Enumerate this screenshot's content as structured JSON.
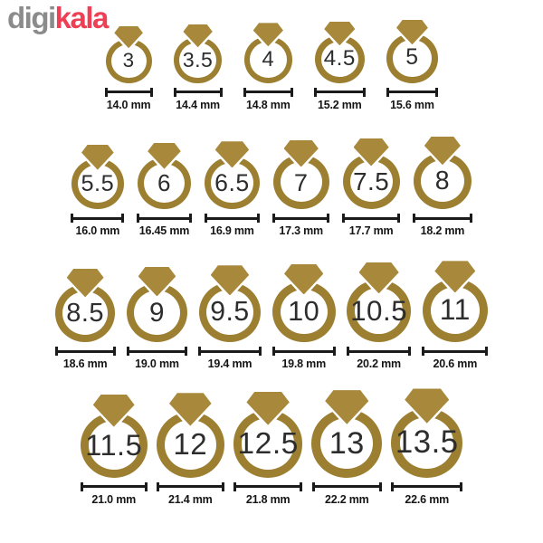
{
  "logo": {
    "gray_text": "digi",
    "red_text": "kala"
  },
  "colors": {
    "background": "#ffffff",
    "band": "#9c7f31",
    "gem": "#a8893c",
    "logo_gray": "#8b8b8b",
    "logo_red": "#ee3f55",
    "ruler": "#1b1b1b",
    "number": "#2d2d2d",
    "label": "#151515"
  },
  "chart_data": {
    "type": "table",
    "description": "Ring size chart: ring size number with inner diameter in millimeters",
    "unit": "mm",
    "rows": [
      [
        {
          "size": "3",
          "mm": 14.0,
          "label": "14.0 mm"
        },
        {
          "size": "3.5",
          "mm": 14.4,
          "label": "14.4 mm"
        },
        {
          "size": "4",
          "mm": 14.8,
          "label": "14.8 mm"
        },
        {
          "size": "4.5",
          "mm": 15.2,
          "label": "15.2 mm"
        },
        {
          "size": "5",
          "mm": 15.6,
          "label": "15.6 mm"
        }
      ],
      [
        {
          "size": "5.5",
          "mm": 16.0,
          "label": "16.0 mm"
        },
        {
          "size": "6",
          "mm": 16.45,
          "label": "16.45 mm"
        },
        {
          "size": "6.5",
          "mm": 16.9,
          "label": "16.9 mm"
        },
        {
          "size": "7",
          "mm": 17.3,
          "label": "17.3 mm"
        },
        {
          "size": "7.5",
          "mm": 17.7,
          "label": "17.7 mm"
        },
        {
          "size": "8",
          "mm": 18.2,
          "label": "18.2 mm"
        }
      ],
      [
        {
          "size": "8.5",
          "mm": 18.6,
          "label": "18.6 mm"
        },
        {
          "size": "9",
          "mm": 19.0,
          "label": "19.0 mm"
        },
        {
          "size": "9.5",
          "mm": 19.4,
          "label": "19.4 mm"
        },
        {
          "size": "10",
          "mm": 19.8,
          "label": "19.8 mm"
        },
        {
          "size": "10.5",
          "mm": 20.2,
          "label": "20.2 mm"
        },
        {
          "size": "11",
          "mm": 20.6,
          "label": "20.6 mm"
        }
      ],
      [
        {
          "size": "11.5",
          "mm": 21.0,
          "label": "21.0 mm"
        },
        {
          "size": "12",
          "mm": 21.4,
          "label": "21.4 mm"
        },
        {
          "size": "12.5",
          "mm": 21.8,
          "label": "21.8 mm"
        },
        {
          "size": "13",
          "mm": 22.2,
          "label": "22.2 mm"
        },
        {
          "size": "13.5",
          "mm": 22.6,
          "label": "22.6 mm"
        }
      ]
    ]
  }
}
